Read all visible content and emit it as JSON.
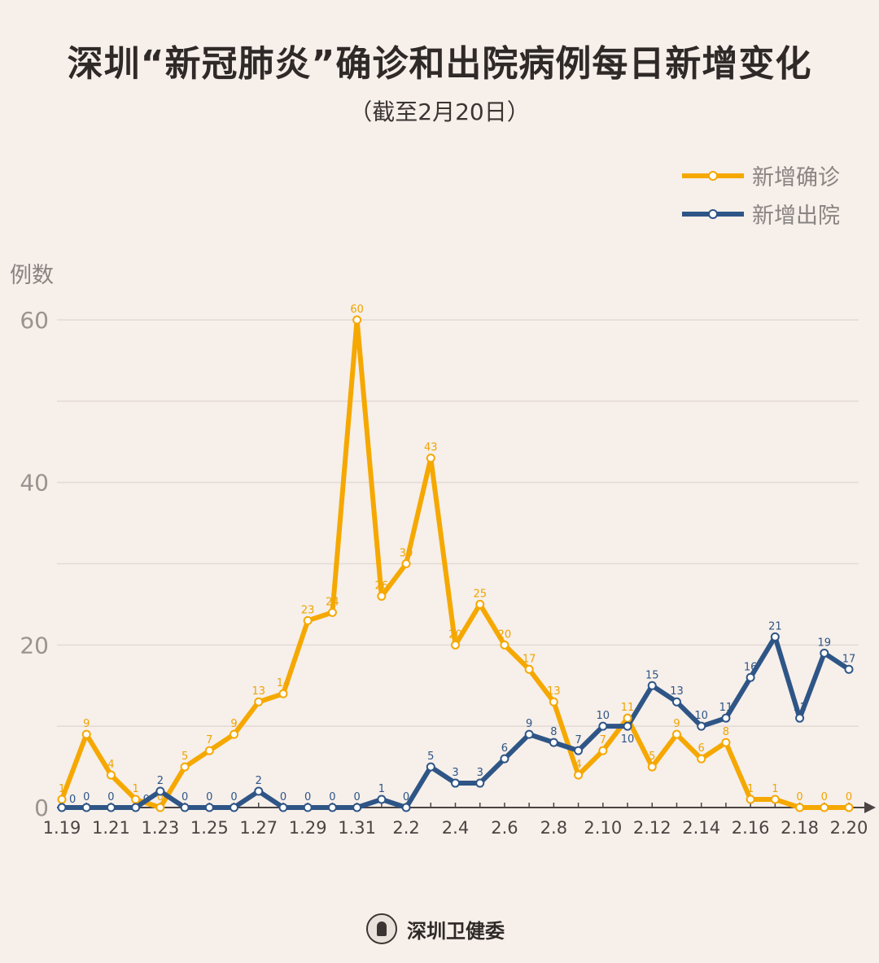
{
  "title": "深圳“新冠肺炎”确诊和出院病例每日新增变化",
  "subtitle": "（截至2月20日）",
  "footer": "深圳卫健委",
  "chart_data": {
    "type": "line",
    "title": "深圳“新冠肺炎”确诊和出院病例每日新增变化",
    "subtitle": "（截至2月20日）",
    "ylabel": "例数",
    "xlabel": "",
    "ylim": [
      0,
      60
    ],
    "yticks": [
      0,
      20,
      40,
      60
    ],
    "grid": true,
    "legend_position": "top-right",
    "x": [
      "1.19",
      "1.20",
      "1.21",
      "1.22",
      "1.23",
      "1.24",
      "1.25",
      "1.26",
      "1.27",
      "1.28",
      "1.29",
      "1.30",
      "1.31",
      "2.1",
      "2.2",
      "2.3",
      "2.4",
      "2.5",
      "2.6",
      "2.7",
      "2.8",
      "2.9",
      "2.10",
      "2.11",
      "2.12",
      "2.13",
      "2.14",
      "2.15",
      "2.16",
      "2.17",
      "2.18",
      "2.19",
      "2.20"
    ],
    "xtick_labels": [
      "1.19",
      "1.21",
      "1.23",
      "1.25",
      "1.27",
      "1.29",
      "1.31",
      "2.2",
      "2.4",
      "2.6",
      "2.8",
      "2.10",
      "2.12",
      "2.14",
      "2.16",
      "2.18",
      "2.20"
    ],
    "series": [
      {
        "name": "新增确诊",
        "color": "#f5a800",
        "values": [
          1,
          9,
          4,
          1,
          0,
          5,
          7,
          9,
          13,
          14,
          23,
          24,
          60,
          26,
          30,
          43,
          20,
          25,
          20,
          17,
          13,
          4,
          7,
          11,
          5,
          9,
          6,
          8,
          1,
          1,
          0,
          0,
          0
        ]
      },
      {
        "name": "新增出院",
        "color": "#2e5586",
        "values": [
          0,
          0,
          0,
          0,
          2,
          0,
          0,
          0,
          2,
          0,
          0,
          0,
          0,
          1,
          0,
          5,
          3,
          3,
          6,
          9,
          8,
          7,
          10,
          10,
          15,
          13,
          10,
          11,
          16,
          21,
          11,
          19,
          17
        ]
      }
    ]
  }
}
